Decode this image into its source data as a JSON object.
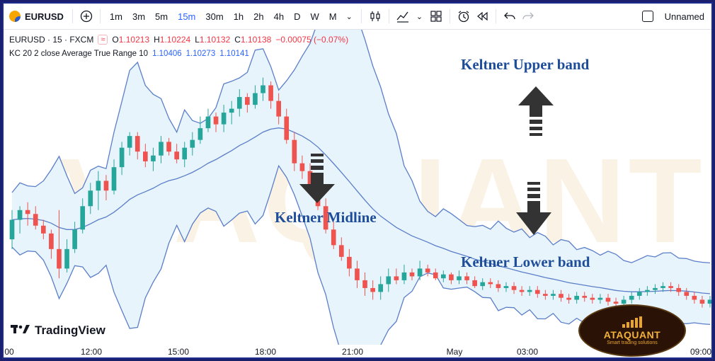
{
  "toolbar": {
    "symbol": "EURUSD",
    "timeframes": [
      "1m",
      "3m",
      "5m",
      "15m",
      "30m",
      "1h",
      "2h",
      "4h",
      "D",
      "W",
      "M"
    ],
    "active_timeframe": "15m",
    "layout_name": "Unnamed",
    "icons": [
      "add-symbol-icon",
      "chevron-down-icon",
      "candles-icon",
      "indicators-icon",
      "templates-icon",
      "alert-icon",
      "replay-icon",
      "undo-icon",
      "redo-icon"
    ]
  },
  "legend": {
    "title": "EURUSD · 15 · FXCM",
    "open_label": "O",
    "open": "1.10213",
    "high_label": "H",
    "high": "1.10224",
    "low_label": "L",
    "low": "1.10132",
    "close_label": "C",
    "close": "1.10138",
    "change": "−0.00075 (−0.07%)",
    "indicator": "KC 20 2 close Average True Range 10",
    "kc_upper": "1.10406",
    "kc_mid": "1.10273",
    "kc_lower": "1.10141"
  },
  "annotations": {
    "upper": "Keltner Upper band",
    "mid": "Keltner Midline",
    "lower": "Keltner Lower band"
  },
  "watermark": "ATAQUANT",
  "branding": {
    "tradingview": "TradingView",
    "badge_name": "ATAQUANT",
    "badge_tagline": "Smart trading solutions"
  },
  "time_axis": [
    "00",
    "12:00",
    "15:00",
    "18:00",
    "21:00",
    "May",
    "03:00",
    "09:00"
  ],
  "colors": {
    "up": "#26a69a",
    "down": "#ef5350",
    "band_line": "#5b7ec9",
    "band_fill": "#e6f4fb",
    "accent": "#2962ff",
    "annotation": "#1e4d9a"
  },
  "chart_data": {
    "type": "candlestick",
    "symbol": "EURUSD",
    "interval": "15",
    "indicator": "Keltner Channel (20, 2, close, ATR 10)",
    "candles": [
      [
        45,
        55,
        40,
        60
      ],
      [
        55,
        60,
        48,
        62
      ],
      [
        60,
        58,
        52,
        64
      ],
      [
        58,
        52,
        50,
        62
      ],
      [
        52,
        48,
        45,
        55
      ],
      [
        48,
        40,
        35,
        50
      ],
      [
        40,
        30,
        25,
        60
      ],
      [
        30,
        40,
        28,
        45
      ],
      [
        40,
        50,
        38,
        54
      ],
      [
        50,
        62,
        48,
        66
      ],
      [
        62,
        70,
        58,
        74
      ],
      [
        70,
        75,
        60,
        80
      ],
      [
        75,
        70,
        65,
        78
      ],
      [
        70,
        82,
        68,
        86
      ],
      [
        82,
        92,
        78,
        95
      ],
      [
        92,
        98,
        88,
        100
      ],
      [
        98,
        90,
        86,
        100
      ],
      [
        90,
        85,
        82,
        94
      ],
      [
        85,
        88,
        80,
        92
      ],
      [
        88,
        95,
        84,
        98
      ],
      [
        95,
        90,
        88,
        97
      ],
      [
        90,
        86,
        84,
        94
      ],
      [
        86,
        92,
        82,
        95
      ],
      [
        92,
        96,
        88,
        100
      ],
      [
        96,
        102,
        94,
        108
      ],
      [
        102,
        108,
        100,
        112
      ],
      [
        108,
        104,
        100,
        110
      ],
      [
        104,
        110,
        100,
        114
      ],
      [
        110,
        112,
        104,
        116
      ],
      [
        112,
        118,
        108,
        122
      ],
      [
        118,
        114,
        110,
        120
      ],
      [
        114,
        120,
        112,
        124
      ],
      [
        120,
        124,
        116,
        128
      ],
      [
        124,
        116,
        112,
        126
      ],
      [
        116,
        108,
        104,
        120
      ],
      [
        108,
        96,
        94,
        112
      ],
      [
        96,
        84,
        80,
        100
      ],
      [
        84,
        80,
        76,
        88
      ],
      [
        80,
        72,
        70,
        84
      ],
      [
        72,
        62,
        60,
        76
      ],
      [
        62,
        50,
        48,
        66
      ],
      [
        50,
        42,
        40,
        54
      ],
      [
        42,
        36,
        34,
        46
      ],
      [
        36,
        30,
        26,
        40
      ],
      [
        30,
        24,
        20,
        34
      ],
      [
        24,
        20,
        16,
        28
      ],
      [
        20,
        18,
        14,
        24
      ],
      [
        18,
        22,
        14,
        26
      ],
      [
        22,
        26,
        18,
        30
      ],
      [
        26,
        24,
        22,
        30
      ],
      [
        24,
        28,
        22,
        32
      ],
      [
        28,
        26,
        24,
        30
      ],
      [
        26,
        30,
        24,
        34
      ],
      [
        30,
        28,
        26,
        32
      ],
      [
        28,
        25,
        24,
        30
      ],
      [
        25,
        27,
        23,
        29
      ],
      [
        27,
        24,
        22,
        28
      ],
      [
        24,
        26,
        22,
        29
      ],
      [
        26,
        24,
        22,
        28
      ],
      [
        24,
        21,
        20,
        26
      ],
      [
        21,
        23,
        19,
        25
      ],
      [
        23,
        22,
        20,
        25
      ],
      [
        22,
        20,
        18,
        24
      ],
      [
        20,
        21,
        18,
        23
      ],
      [
        21,
        19,
        17,
        23
      ],
      [
        19,
        18,
        16,
        21
      ],
      [
        18,
        19,
        16,
        21
      ],
      [
        19,
        17,
        15,
        21
      ],
      [
        17,
        16,
        14,
        19
      ],
      [
        16,
        17,
        14,
        19
      ],
      [
        17,
        15,
        13,
        19
      ],
      [
        15,
        14,
        12,
        17
      ],
      [
        14,
        16,
        12,
        18
      ],
      [
        16,
        15,
        13,
        18
      ],
      [
        15,
        14,
        12,
        17
      ],
      [
        14,
        15,
        12,
        17
      ],
      [
        15,
        13,
        11,
        17
      ],
      [
        13,
        12,
        10,
        15
      ],
      [
        12,
        14,
        10,
        16
      ],
      [
        14,
        16,
        12,
        18
      ],
      [
        16,
        18,
        14,
        20
      ],
      [
        18,
        19,
        16,
        21
      ],
      [
        19,
        20,
        17,
        22
      ],
      [
        20,
        21,
        18,
        23
      ],
      [
        21,
        20,
        18,
        23
      ],
      [
        20,
        18,
        16,
        22
      ],
      [
        18,
        16,
        14,
        20
      ],
      [
        16,
        14,
        12,
        18
      ],
      [
        14,
        12,
        10,
        16
      ],
      [
        12,
        14,
        10,
        16
      ]
    ]
  }
}
